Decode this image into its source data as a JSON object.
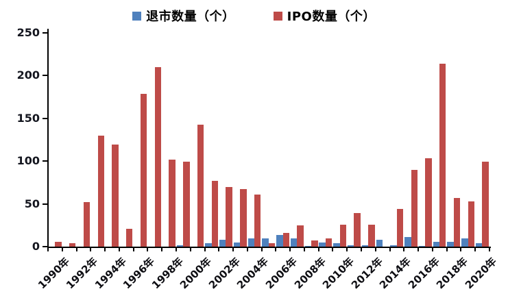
{
  "chart": {
    "legend": {
      "items": [
        {
          "id": "delisting",
          "label": "退市数量（个）",
          "color": "#4F81BD"
        },
        {
          "id": "ipo",
          "label": "IPO数量（个）",
          "color": "#BE4B48"
        }
      ]
    }
  },
  "chart_data": {
    "type": "bar",
    "title": "",
    "xlabel": "",
    "ylabel": "",
    "x": [
      1990,
      1991,
      1992,
      1993,
      1994,
      1995,
      1996,
      1997,
      1998,
      1999,
      2000,
      2001,
      2002,
      2003,
      2004,
      2005,
      2006,
      2007,
      2008,
      2009,
      2010,
      2011,
      2012,
      2013,
      2014,
      2015,
      2016,
      2017,
      2018,
      2019,
      2020
    ],
    "x_tick_labels": [
      "1990年",
      "1992年",
      "1994年",
      "1996年",
      "1998年",
      "2000年",
      "2002年",
      "2004年",
      "2006年",
      "2008年",
      "2010年",
      "2012年",
      "2014年",
      "2016年",
      "2018年",
      "2020年"
    ],
    "y_tick_labels": [
      "0",
      "50",
      "100",
      "150",
      "200",
      "250"
    ],
    "ylim": [
      0,
      250
    ],
    "ytick_step": 50,
    "grid": false,
    "legend_position": "top",
    "series": [
      {
        "name": "退市数量（个）",
        "color": "#4F81BD",
        "values": [
          0,
          0,
          0,
          0,
          0,
          0,
          0,
          0,
          0,
          2,
          0,
          4,
          8,
          5,
          10,
          10,
          14,
          10,
          1,
          5,
          4,
          2,
          2,
          8,
          2,
          11,
          1,
          6,
          6,
          10,
          4
        ]
      },
      {
        "name": "IPO数量（个）",
        "color": "#BE4B48",
        "values": [
          6,
          4,
          52,
          130,
          119,
          21,
          179,
          210,
          102,
          99,
          143,
          77,
          70,
          67,
          61,
          4,
          16,
          25,
          7,
          10,
          26,
          39,
          26,
          0,
          44,
          90,
          103,
          214,
          57,
          53,
          99
        ]
      }
    ]
  }
}
